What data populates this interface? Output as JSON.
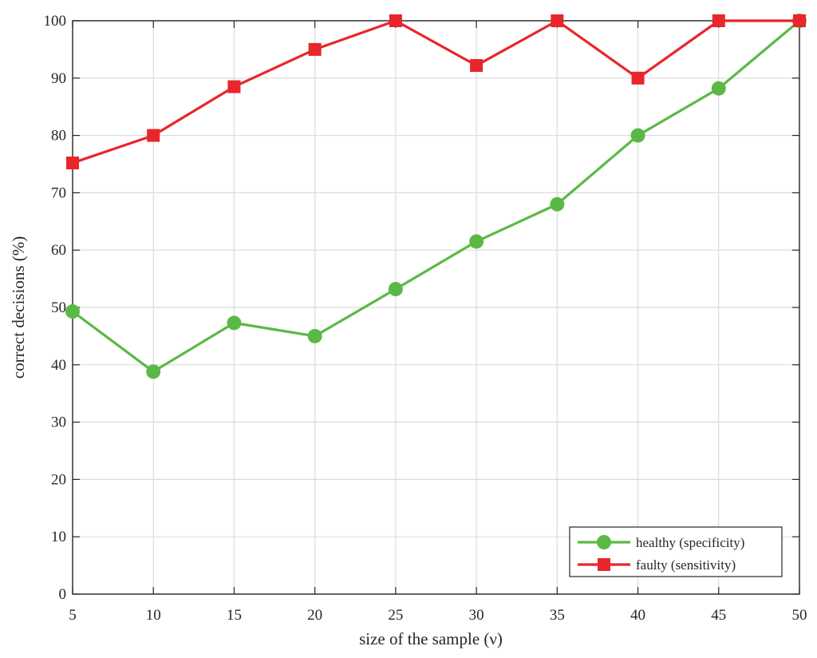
{
  "chart_data": {
    "type": "line",
    "xlabel": "size of the sample (ν)",
    "ylabel": "correct decisions (%)",
    "xlim": [
      5,
      50
    ],
    "ylim": [
      0,
      100
    ],
    "xticks": [
      5,
      10,
      15,
      20,
      25,
      30,
      35,
      40,
      45,
      50
    ],
    "yticks": [
      0,
      10,
      20,
      30,
      40,
      50,
      60,
      70,
      80,
      90,
      100
    ],
    "grid": true,
    "legend_position": "bottom-right",
    "x": [
      5,
      10,
      15,
      20,
      25,
      30,
      35,
      40,
      45,
      50
    ],
    "series": [
      {
        "name": "healthy (specificity)",
        "color": "#5ab946",
        "marker": "circle",
        "values": [
          49.3,
          38.8,
          47.3,
          45.0,
          53.2,
          61.5,
          68.0,
          80.0,
          88.2,
          100.0
        ]
      },
      {
        "name": "faulty (sensitivity)",
        "color": "#e8262b",
        "marker": "square",
        "values": [
          75.2,
          80.0,
          88.5,
          95.0,
          100.0,
          92.2,
          100.0,
          90.0,
          100.0,
          100.0
        ]
      }
    ]
  }
}
